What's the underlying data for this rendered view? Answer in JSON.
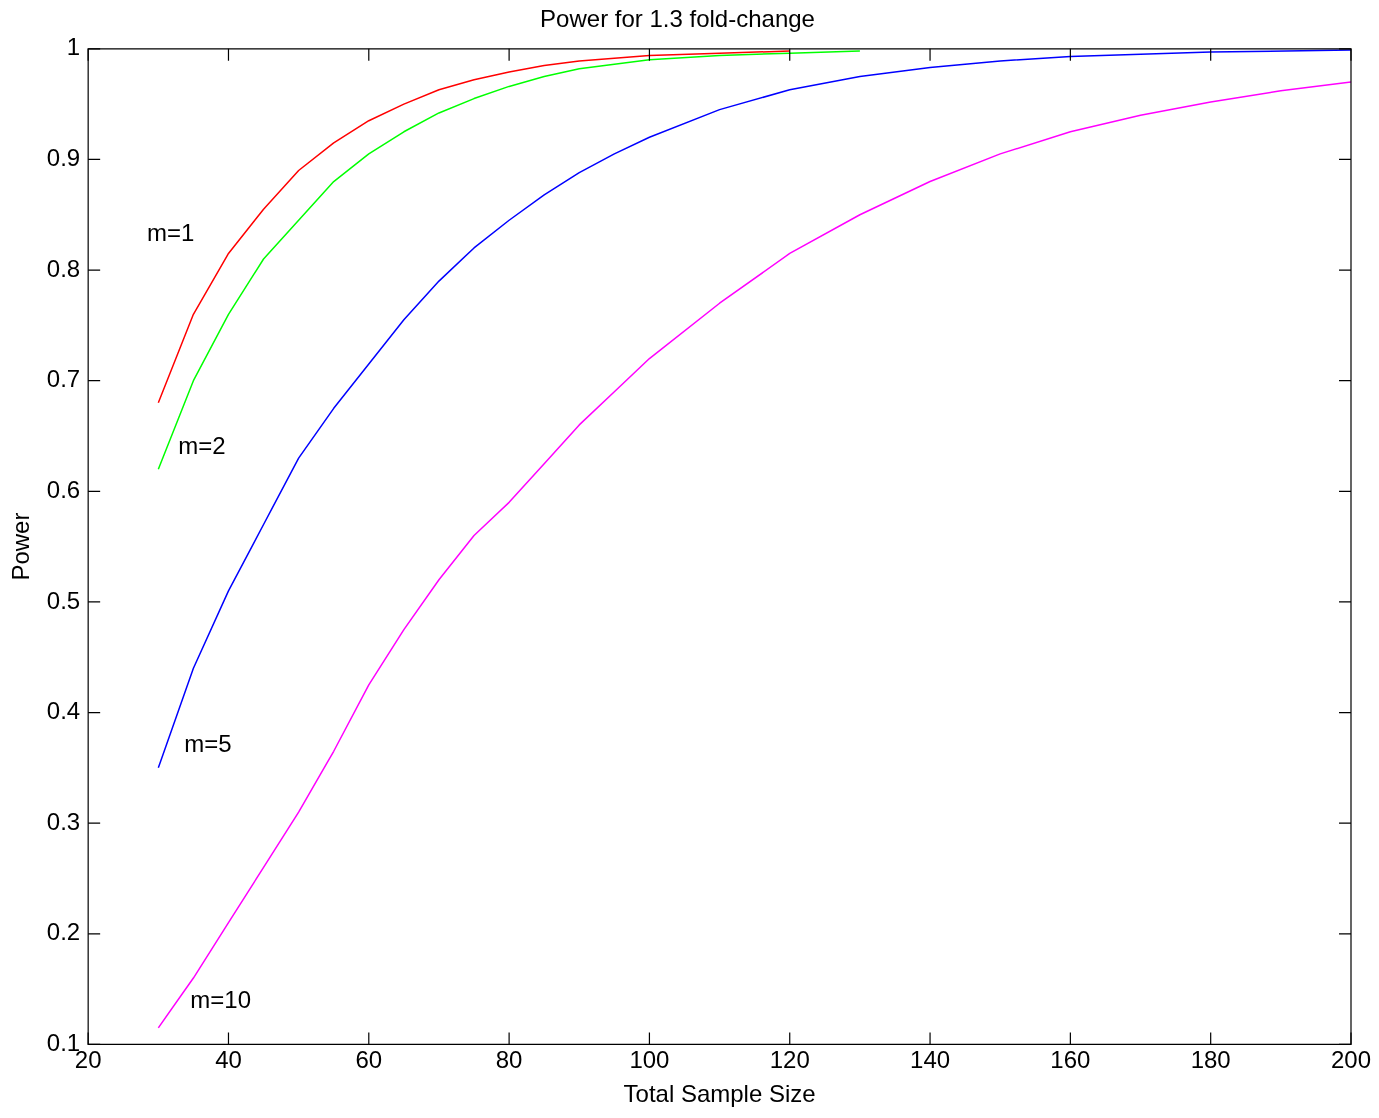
{
  "chart_data": {
    "type": "line",
    "title": "Power for 1.3 fold-change",
    "xlabel": "Total Sample Size",
    "ylabel": "Power",
    "xlim": [
      20,
      200
    ],
    "xticks": [
      20,
      40,
      60,
      80,
      100,
      120,
      140,
      160,
      180,
      200
    ],
    "ylim": [
      0.1,
      1
    ],
    "yticks": [
      0.1,
      0.2,
      0.3,
      0.4,
      0.5,
      0.6,
      0.7,
      0.8,
      0.9,
      1
    ],
    "grid": false,
    "legend": false,
    "marker": "none",
    "line_style": "solid",
    "series": [
      {
        "name": "m=1",
        "color": "#ff0000",
        "x": [
          30,
          35,
          40,
          45,
          50,
          55,
          60,
          65,
          70,
          75,
          80,
          85,
          90,
          100,
          110,
          120
        ],
        "values": [
          0.68,
          0.76,
          0.815,
          0.855,
          0.89,
          0.915,
          0.935,
          0.95,
          0.963,
          0.972,
          0.979,
          0.985,
          0.989,
          0.994,
          0.996,
          0.998
        ]
      },
      {
        "name": "m=2",
        "color": "#00ff00",
        "x": [
          30,
          35,
          40,
          45,
          50,
          55,
          60,
          65,
          70,
          75,
          80,
          85,
          90,
          100,
          110,
          120,
          130
        ],
        "values": [
          0.62,
          0.7,
          0.76,
          0.81,
          0.845,
          0.88,
          0.905,
          0.925,
          0.942,
          0.955,
          0.966,
          0.975,
          0.982,
          0.99,
          0.994,
          0.996,
          0.998
        ]
      },
      {
        "name": "m=5",
        "color": "#0000ff",
        "x": [
          30,
          35,
          40,
          45,
          50,
          55,
          60,
          65,
          70,
          75,
          80,
          85,
          90,
          95,
          100,
          110,
          120,
          130,
          140,
          150,
          160,
          180,
          200
        ],
        "values": [
          0.35,
          0.44,
          0.51,
          0.57,
          0.63,
          0.675,
          0.715,
          0.755,
          0.79,
          0.82,
          0.845,
          0.868,
          0.888,
          0.905,
          0.92,
          0.945,
          0.963,
          0.975,
          0.983,
          0.989,
          0.993,
          0.997,
          0.999
        ]
      },
      {
        "name": "m=10",
        "color": "#ff00ff",
        "x": [
          30,
          35,
          40,
          45,
          50,
          55,
          60,
          65,
          70,
          75,
          80,
          85,
          90,
          95,
          100,
          110,
          120,
          130,
          140,
          150,
          160,
          170,
          180,
          190,
          200
        ],
        "values": [
          0.115,
          0.16,
          0.21,
          0.26,
          0.31,
          0.365,
          0.425,
          0.475,
          0.52,
          0.56,
          0.59,
          0.625,
          0.66,
          0.69,
          0.72,
          0.77,
          0.815,
          0.85,
          0.88,
          0.905,
          0.925,
          0.94,
          0.952,
          0.962,
          0.97
        ]
      }
    ]
  }
}
